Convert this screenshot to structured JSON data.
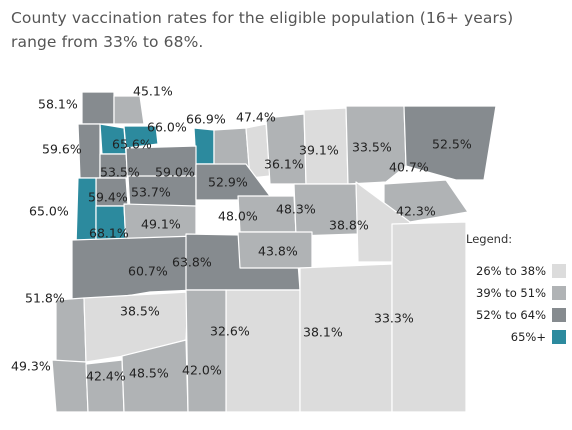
{
  "title_line1": "County vaccination rates for the eligible population (16+ years)",
  "title_line2": "range from 33% to 68%.",
  "legend": {
    "title": "Legend:",
    "items": [
      {
        "label": "26% to 38%",
        "color": "#dcdcdc"
      },
      {
        "label": "39% to 51%",
        "color": "#b0b3b5"
      },
      {
        "label": "52% to 64%",
        "color": "#868b8f"
      },
      {
        "label": "65%+",
        "color": "#2c8a9e"
      }
    ]
  },
  "counties": [
    {
      "id": "clatsop",
      "value": "58.1%"
    },
    {
      "id": "columbia",
      "value": "45.1%"
    },
    {
      "id": "tillamook",
      "value": "59.6%"
    },
    {
      "id": "washington",
      "value": "65.6%"
    },
    {
      "id": "multnomah",
      "value": "66.0%"
    },
    {
      "id": "hood-river",
      "value": "66.9%"
    },
    {
      "id": "wasco",
      "value": "47.4%"
    },
    {
      "id": "sherman",
      "value": "36.1%"
    },
    {
      "id": "gilliam",
      "value": "39.1%"
    },
    {
      "id": "morrow",
      "value": "33.5%"
    },
    {
      "id": "umatilla",
      "value": "40.7%"
    },
    {
      "id": "wallowa",
      "value": "52.5%"
    },
    {
      "id": "union",
      "value": "42.3%"
    },
    {
      "id": "yamhill",
      "value": "53.5%"
    },
    {
      "id": "clackamas",
      "value": "59.0%"
    },
    {
      "id": "polk",
      "value": "59.4%"
    },
    {
      "id": "marion",
      "value": "53.7%"
    },
    {
      "id": "lincoln",
      "value": "65.0%"
    },
    {
      "id": "benton",
      "value": "68.1%"
    },
    {
      "id": "linn",
      "value": "49.1%"
    },
    {
      "id": "jefferson",
      "value": "52.9%"
    },
    {
      "id": "wheeler",
      "value": "48.0%"
    },
    {
      "id": "grant",
      "value": "48.3%"
    },
    {
      "id": "baker",
      "value": "38.8%"
    },
    {
      "id": "lane",
      "value": "60.7%"
    },
    {
      "id": "deschutes",
      "value": "63.8%"
    },
    {
      "id": "crook",
      "value": "43.8%"
    },
    {
      "id": "coos",
      "value": "51.8%"
    },
    {
      "id": "douglas",
      "value": "38.5%"
    },
    {
      "id": "lake",
      "value": "32.6%"
    },
    {
      "id": "harney",
      "value": "38.1%"
    },
    {
      "id": "malheur",
      "value": "33.3%"
    },
    {
      "id": "curry",
      "value": "49.3%"
    },
    {
      "id": "josephine",
      "value": "42.4%"
    },
    {
      "id": "jackson",
      "value": "48.5%"
    },
    {
      "id": "klamath",
      "value": "42.0%"
    }
  ]
}
